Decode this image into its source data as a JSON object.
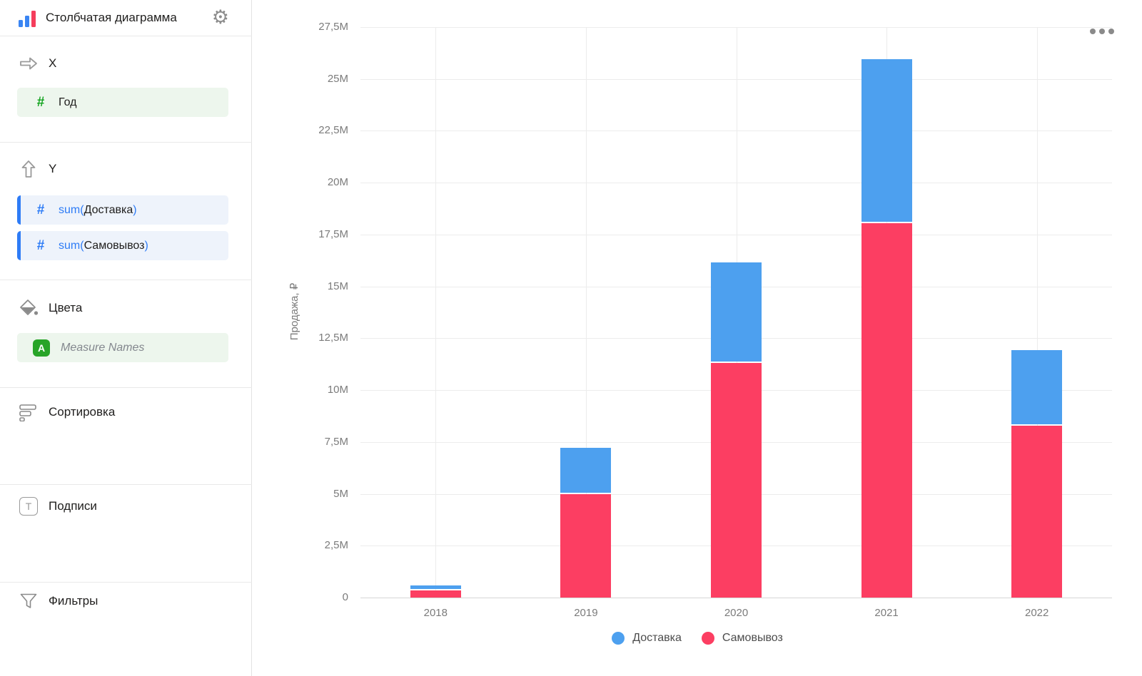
{
  "sidebar": {
    "header": {
      "title": "Столбчатая диаграмма"
    },
    "sections": {
      "x": {
        "label": "X",
        "field": {
          "name": "Год"
        }
      },
      "y": {
        "label": "Y",
        "fields": [
          {
            "prefix": "sum(",
            "name": "Доставка",
            "suffix": ")"
          },
          {
            "prefix": "sum(",
            "name": "Самовывоз",
            "suffix": ")"
          }
        ]
      },
      "colors": {
        "label": "Цвета",
        "field": {
          "badge": "A",
          "name": "Measure Names"
        }
      },
      "sorting": {
        "label": "Сортировка"
      },
      "labels": {
        "label": "Подписи"
      },
      "filters": {
        "label": "Фильтры"
      }
    }
  },
  "chart_data": {
    "type": "bar",
    "stacked": true,
    "categories": [
      "2018",
      "2019",
      "2020",
      "2021",
      "2022"
    ],
    "series": [
      {
        "name": "Доставка",
        "color": "#4da0ef",
        "values": [
          0.17,
          2.15,
          4.8,
          7.85,
          3.55
        ]
      },
      {
        "name": "Самовывоз",
        "color": "#fc3e62",
        "values": [
          0.33,
          5.0,
          11.3,
          18.05,
          8.3
        ]
      }
    ],
    "unit": "M ₽",
    "ylabel": "Продажа, ₽",
    "ylim": [
      0,
      27.5
    ],
    "yticks": [
      {
        "label": "0",
        "value": 0
      },
      {
        "label": "2,5M",
        "value": 2.5
      },
      {
        "label": "5M",
        "value": 5
      },
      {
        "label": "7,5M",
        "value": 7.5
      },
      {
        "label": "10M",
        "value": 10
      },
      {
        "label": "12,5M",
        "value": 12.5
      },
      {
        "label": "15M",
        "value": 15
      },
      {
        "label": "17,5M",
        "value": 17.5
      },
      {
        "label": "20M",
        "value": 20
      },
      {
        "label": "22,5M",
        "value": 22.5
      },
      {
        "label": "25M",
        "value": 25
      },
      {
        "label": "27,5M",
        "value": 27.5
      }
    ],
    "grid": true,
    "legend_position": "bottom"
  }
}
